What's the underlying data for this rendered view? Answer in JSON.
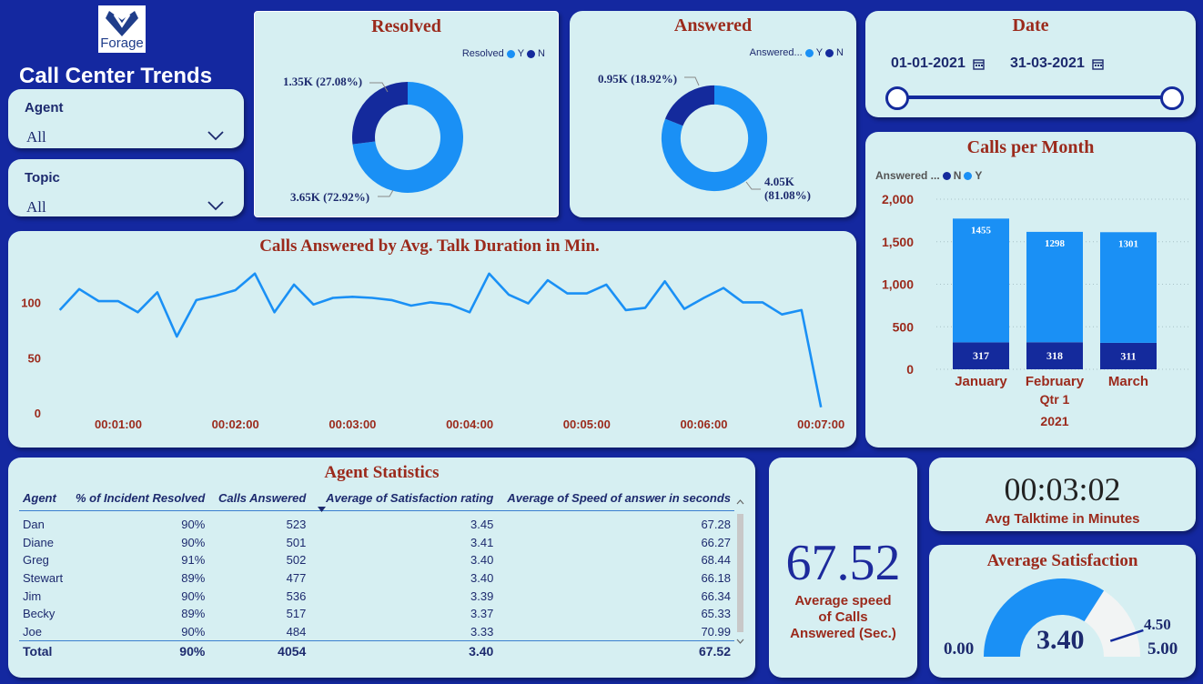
{
  "header": {
    "logo_text": "Forage",
    "title": "Call Center Trends"
  },
  "slicers": {
    "agent": {
      "label": "Agent",
      "value": "All"
    },
    "topic": {
      "label": "Topic",
      "value": "All"
    }
  },
  "resolved": {
    "title": "Resolved",
    "legend_title": "Resolved",
    "legend": [
      "Y",
      "N"
    ],
    "label_n": "1.35K (27.08%)",
    "label_y": "3.65K (72.92%)",
    "chart_data": {
      "type": "pie",
      "categories": [
        "Y",
        "N"
      ],
      "values": [
        3650,
        1350
      ],
      "percent": [
        72.92,
        27.08
      ]
    }
  },
  "answered": {
    "title": "Answered",
    "legend_title": "Answered...",
    "legend": [
      "Y",
      "N"
    ],
    "label_n": "0.95K (18.92%)",
    "label_y_1": "4.05K",
    "label_y_2": "(81.08%)",
    "chart_data": {
      "type": "pie",
      "categories": [
        "Y",
        "N"
      ],
      "values": [
        4050,
        950
      ],
      "percent": [
        81.08,
        18.92
      ]
    }
  },
  "date": {
    "title": "Date",
    "start": "01-01-2021",
    "end": "31-03-2021"
  },
  "calls_per_month": {
    "title": "Calls per Month",
    "legend_title": "Answered ...",
    "legend": [
      "N",
      "Y"
    ],
    "y_ticks": [
      "2,000",
      "1,500",
      "1,000",
      "500",
      "0"
    ],
    "x_sub_1": "Qtr 1",
    "x_sub_2": "2021",
    "chart_data": {
      "type": "bar",
      "stacked": true,
      "categories": [
        "January",
        "February",
        "March"
      ],
      "series": [
        {
          "name": "N",
          "values": [
            317,
            318,
            311
          ]
        },
        {
          "name": "Y",
          "values": [
            1455,
            1298,
            1301
          ]
        }
      ],
      "ylim": [
        0,
        2000
      ]
    }
  },
  "talk_duration": {
    "title": "Calls Answered by Avg. Talk Duration in Min.",
    "y_ticks": [
      "100",
      "50",
      "0"
    ],
    "x_ticks": [
      "00:01:00",
      "00:02:00",
      "00:03:00",
      "00:04:00",
      "00:05:00",
      "00:06:00",
      "00:07:00"
    ],
    "chart_data": {
      "type": "line",
      "x_range_seconds": [
        30,
        420
      ],
      "ylim": [
        0,
        140
      ],
      "values": [
        94,
        113,
        102,
        102,
        92,
        110,
        70,
        103,
        107,
        112,
        127,
        92,
        117,
        99,
        105,
        106,
        105,
        103,
        98,
        101,
        99,
        92,
        127,
        108,
        100,
        121,
        109,
        109,
        117,
        94,
        96,
        120,
        95,
        105,
        114,
        101,
        101,
        90,
        94,
        6
      ]
    }
  },
  "agent_stats": {
    "title": "Agent Statistics",
    "columns": [
      "Agent",
      "% of Incident Resolved",
      "Calls Answered",
      "Average of Satisfaction rating",
      "Average of Speed of answer in seconds"
    ],
    "rows": [
      [
        "Dan",
        "90%",
        "523",
        "3.45",
        "67.28"
      ],
      [
        "Diane",
        "90%",
        "501",
        "3.41",
        "66.27"
      ],
      [
        "Greg",
        "91%",
        "502",
        "3.40",
        "68.44"
      ],
      [
        "Stewart",
        "89%",
        "477",
        "3.40",
        "66.18"
      ],
      [
        "Jim",
        "90%",
        "536",
        "3.39",
        "66.34"
      ],
      [
        "Becky",
        "89%",
        "517",
        "3.37",
        "65.33"
      ],
      [
        "Joe",
        "90%",
        "484",
        "3.33",
        "70.99"
      ]
    ],
    "total": [
      "Total",
      "90%",
      "4054",
      "3.40",
      "67.52"
    ]
  },
  "speed_card": {
    "value": "67.52",
    "label_1": "Average speed",
    "label_2": "of Calls",
    "label_3": "Answered (Sec.)"
  },
  "talktime_card": {
    "value": "00:03:02",
    "label": "Avg Talktime in Minutes"
  },
  "satisfaction": {
    "title": "Average Satisfaction",
    "value": "3.40",
    "min": "0.00",
    "max": "5.00",
    "target": "4.50",
    "chart_data": {
      "type": "gauge",
      "value": 3.4,
      "min": 0,
      "max": 5,
      "target": 4.5
    }
  },
  "colors": {
    "background": "#1428a0",
    "card": "#d6eff2",
    "accent": "#1a90f5",
    "navy": "#142a9c",
    "title_red": "#9b2a1c"
  }
}
